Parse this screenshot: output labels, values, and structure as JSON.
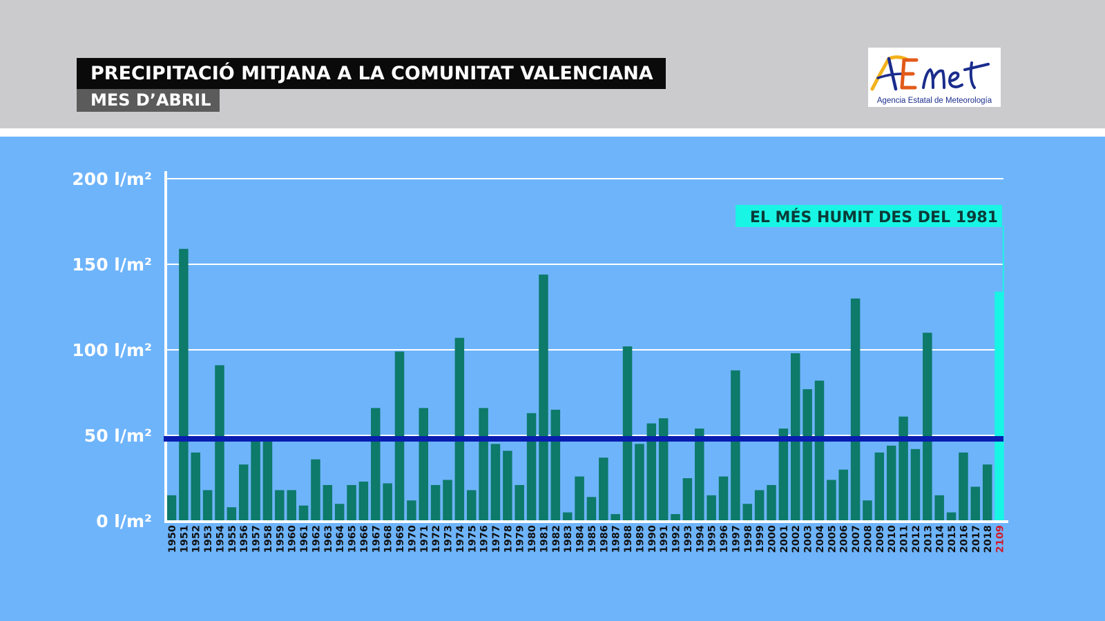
{
  "header": {
    "title": "PRECIPITACIÓ MITJANA A LA COMUNITAT VALENCIANA",
    "subtitle": "MES D’ABRIL"
  },
  "logo": {
    "wordmark": "AEmet",
    "tagline": "Agencia Estatal de Meteorología"
  },
  "colors": {
    "background": "#6eb4fb",
    "header_band": "#cbcacc",
    "bar": "#0d7a6a",
    "highlight_bar": "#19f5e4",
    "average_line": "#0a1db0",
    "highlight_label": "#d11a2a"
  },
  "chart_data": {
    "type": "bar",
    "title": "PRECIPITACIÓ MITJANA A LA COMUNITAT VALENCIANA",
    "subtitle": "MES D’ABRIL",
    "categories": [
      "1950",
      "1951",
      "1952",
      "1953",
      "1954",
      "1955",
      "1956",
      "1957",
      "1958",
      "1959",
      "1960",
      "1961",
      "1962",
      "1963",
      "1964",
      "1965",
      "1966",
      "1967",
      "1968",
      "1969",
      "1970",
      "1971",
      "1972",
      "1973",
      "1974",
      "1975",
      "1976",
      "1977",
      "1978",
      "1979",
      "1980",
      "1981",
      "1982",
      "1983",
      "1984",
      "1985",
      "1986",
      "1987",
      "1988",
      "1989",
      "1990",
      "1991",
      "1992",
      "1993",
      "1994",
      "1995",
      "1996",
      "1997",
      "1998",
      "1999",
      "2000",
      "2001",
      "2002",
      "2003",
      "2004",
      "2005",
      "2006",
      "2007",
      "2008",
      "2009",
      "2010",
      "2011",
      "2012",
      "2013",
      "2014",
      "2015",
      "2016",
      "2017",
      "2018",
      "2109"
    ],
    "values": [
      15,
      159,
      40,
      18,
      91,
      8,
      33,
      48,
      48,
      18,
      18,
      9,
      36,
      21,
      10,
      21,
      23,
      66,
      22,
      99,
      12,
      66,
      21,
      24,
      107,
      18,
      66,
      45,
      41,
      21,
      63,
      144,
      65,
      5,
      26,
      14,
      37,
      4,
      102,
      45,
      57,
      60,
      4,
      25,
      54,
      15,
      26,
      88,
      10,
      18,
      21,
      54,
      98,
      77,
      82,
      24,
      30,
      130,
      12,
      40,
      44,
      61,
      42,
      110,
      15,
      5,
      40,
      20,
      33,
      134
    ],
    "unit_tick_labels": [
      "0 l/m²",
      "50 l/m²",
      "100 l/m²",
      "150 l/m²",
      "200 l/m²"
    ],
    "ylim": [
      0,
      200
    ],
    "reference_line": 48,
    "highlight_category": "2109",
    "annotation": "EL MÉS HUMIT DES DEL 1981",
    "grid": true
  }
}
